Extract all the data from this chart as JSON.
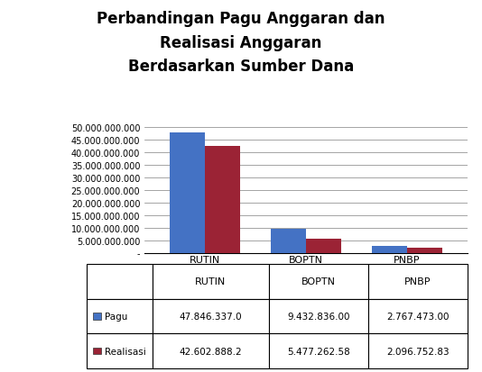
{
  "title_line1": "Perbandingan Pagu Anggaran dan",
  "title_line2": "Realisasi Anggaran",
  "title_line3": "Berdasarkan Sumber Dana",
  "categories": [
    "RUTIN",
    "BOPTN",
    "PNBP"
  ],
  "pagu_values": [
    47846337000,
    9432836000,
    2767473000
  ],
  "realisasi_values": [
    42602888200,
    5477262580,
    2096752830
  ],
  "pagu_label": "Pagu",
  "realisasi_label": "Realisasi",
  "pagu_color": "#4472C4",
  "realisasi_color": "#9B2335",
  "table_pagu": [
    "47.846.337.0",
    "9.432.836.00",
    "2.767.473.00"
  ],
  "table_realisasi": [
    "42.602.888.2",
    "5.477.262.58",
    "2.096.752.83"
  ],
  "yticks": [
    0,
    5000000000,
    10000000000,
    15000000000,
    20000000000,
    25000000000,
    30000000000,
    35000000000,
    40000000000,
    45000000000,
    50000000000
  ],
  "ytick_labels": [
    "-",
    "5.000.000.000",
    "10.000.000.000",
    "15.000.000.000",
    "20.000.000.000",
    "25.000.000.000",
    "30.000.000.000",
    "35.000.000.000",
    "40.000.000.000",
    "45.000.000.000",
    "50.000.000.000"
  ],
  "ylim": [
    0,
    52000000000
  ],
  "background_color": "#FFFFFF",
  "bar_width": 0.35,
  "title_fontsize": 12,
  "tick_fontsize": 7,
  "table_fontsize": 7.5,
  "header_fontsize": 8
}
